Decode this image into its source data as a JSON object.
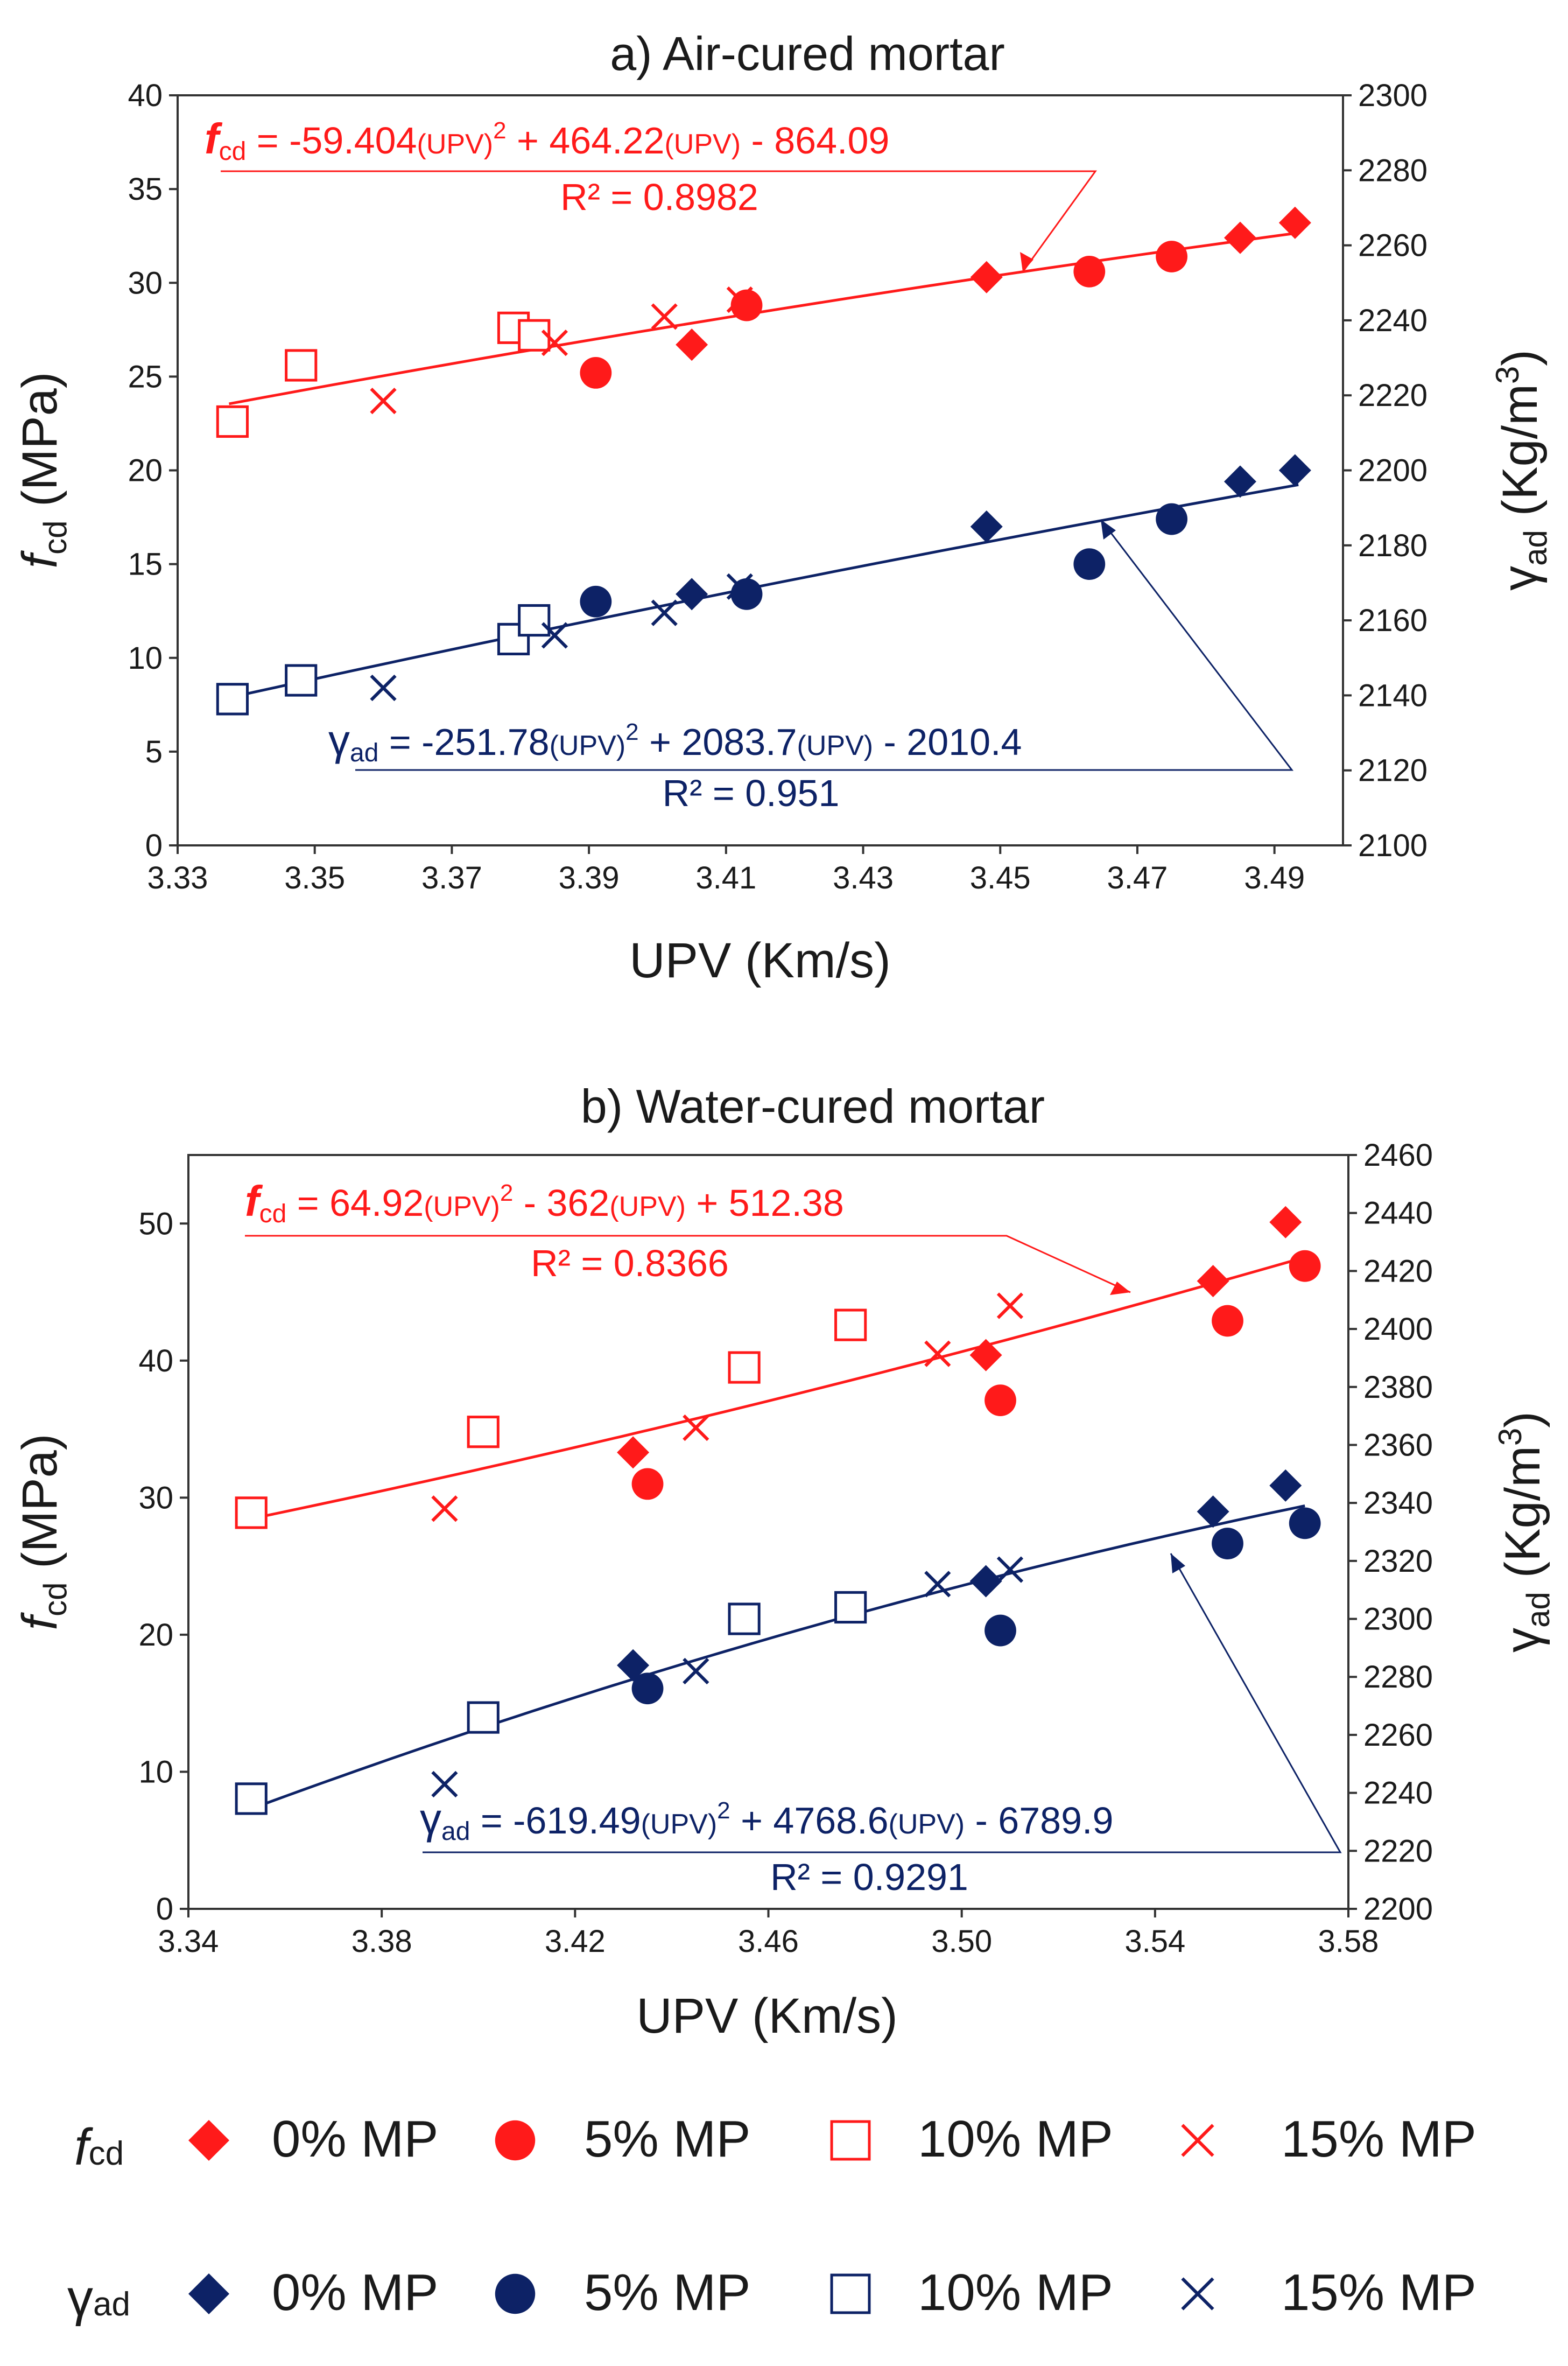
{
  "colors": {
    "red": "#ff1a1a",
    "navy": "#0d2266",
    "axis": "#333333",
    "text": "#1a1a1a"
  },
  "chart_data": [
    {
      "type": "scatter",
      "title": "a) Air-cured mortar",
      "xlabel": "UPV (Km/s)",
      "ylabel_main": "f",
      "ylabel_sub": "cd",
      "ylabel_unit": " (MPa)",
      "y2label_main": "γ",
      "y2label_sub": "ad",
      "y2label_unit": " (Kg/m",
      "y2label_sup": "3",
      "y2label_close": ")",
      "xlim": [
        3.33,
        3.5
      ],
      "ylim": [
        0,
        40
      ],
      "y2lim": [
        2100,
        2300
      ],
      "xticks": [
        "3.33",
        "3.35",
        "3.37",
        "3.39",
        "3.41",
        "3.43",
        "3.45",
        "3.47",
        "3.49"
      ],
      "yticks": [
        "0",
        "5",
        "10",
        "15",
        "20",
        "25",
        "30",
        "35",
        "40"
      ],
      "y2ticks": [
        "2100",
        "2120",
        "2140",
        "2160",
        "2180",
        "2200",
        "2220",
        "2240",
        "2260",
        "2280",
        "2300"
      ],
      "fit_fcd": {
        "a": -59.404,
        "b": 464.22,
        "c": -864.09,
        "x_range": [
          3.3375,
          3.4935
        ]
      },
      "fit_gad": {
        "a": -251.78,
        "b": 2083.7,
        "c": -2010.4,
        "x_range": [
          3.3375,
          3.4935
        ]
      },
      "eq_fcd": {
        "lead": "f",
        "sub": "cd",
        "p1": "  = -59.404",
        "u1": "(UPV)",
        "sq": "2",
        "p2": " + 464.22",
        "u2": "(UPV)",
        "p3": " - 864.09",
        "r2": "R² = 0.8982"
      },
      "eq_gad": {
        "lead": "γ",
        "sub": "ad",
        "p1": "  = -251.78",
        "u1": "(UPV)",
        "sq": "2",
        "p2": " + 2083.7",
        "u2": "(UPV)",
        "p3": " - 2010.4",
        "r2": "R² = 0.951"
      },
      "series": [
        {
          "name": "fcd 0% MP",
          "axis": "left",
          "marker": "diamond",
          "color": "red",
          "points": [
            [
              3.405,
              26.7
            ],
            [
              3.448,
              30.3
            ],
            [
              3.485,
              32.4
            ],
            [
              3.493,
              33.2
            ]
          ]
        },
        {
          "name": "fcd 5% MP",
          "axis": "left",
          "marker": "circle",
          "color": "red",
          "points": [
            [
              3.391,
              25.2
            ],
            [
              3.413,
              28.8
            ],
            [
              3.463,
              30.6
            ],
            [
              3.475,
              31.4
            ]
          ]
        },
        {
          "name": "fcd 10% MP",
          "axis": "left",
          "marker": "square",
          "color": "red",
          "points": [
            [
              3.338,
              22.6
            ],
            [
              3.348,
              25.6
            ],
            [
              3.379,
              27.6
            ],
            [
              3.382,
              27.2
            ]
          ]
        },
        {
          "name": "fcd 15% MP",
          "axis": "left",
          "marker": "x",
          "color": "red",
          "points": [
            [
              3.36,
              23.7
            ],
            [
              3.385,
              26.8
            ],
            [
              3.401,
              28.2
            ],
            [
              3.412,
              29.1
            ]
          ]
        },
        {
          "name": "γad 0% MP",
          "axis": "right",
          "marker": "diamond",
          "color": "navy",
          "points": [
            [
              3.405,
              2167
            ],
            [
              3.448,
              2185
            ],
            [
              3.485,
              2197
            ],
            [
              3.493,
              2200
            ]
          ]
        },
        {
          "name": "γad 5% MP",
          "axis": "right",
          "marker": "circle",
          "color": "navy",
          "points": [
            [
              3.391,
              2165
            ],
            [
              3.413,
              2167
            ],
            [
              3.463,
              2175
            ],
            [
              3.475,
              2187
            ]
          ]
        },
        {
          "name": "γad 10% MP",
          "axis": "right",
          "marker": "square",
          "color": "navy",
          "points": [
            [
              3.338,
              2139
            ],
            [
              3.348,
              2144
            ],
            [
              3.379,
              2155
            ],
            [
              3.382,
              2160
            ]
          ]
        },
        {
          "name": "γad 15% MP",
          "axis": "right",
          "marker": "x",
          "color": "navy",
          "points": [
            [
              3.36,
              2142
            ],
            [
              3.385,
              2156
            ],
            [
              3.401,
              2162
            ],
            [
              3.412,
              2169
            ]
          ]
        }
      ]
    },
    {
      "type": "scatter",
      "title": "b) Water-cured mortar",
      "xlabel": "UPV (Km/s)",
      "ylabel_main": "f",
      "ylabel_sub": "cd",
      "ylabel_unit": " (MPa)",
      "y2label_main": "γ",
      "y2label_sub": "ad",
      "y2label_unit": " (Kg/m",
      "y2label_sup": "3",
      "y2label_close": ")",
      "xlim": [
        3.34,
        3.58
      ],
      "ylim": [
        0,
        55
      ],
      "y2lim": [
        2200,
        2460
      ],
      "xticks": [
        "3.34",
        "3.38",
        "3.42",
        "3.46",
        "3.50",
        "3.54",
        "3.58"
      ],
      "yticks": [
        "0",
        "10",
        "20",
        "30",
        "40",
        "50"
      ],
      "y2ticks": [
        "2200",
        "2220",
        "2240",
        "2260",
        "2280",
        "2300",
        "2320",
        "2340",
        "2360",
        "2380",
        "2400",
        "2420",
        "2440",
        "2460"
      ],
      "fit_fcd": {
        "a": 64.92,
        "b": -362,
        "c": 512.38,
        "x_range": [
          3.353,
          3.571
        ]
      },
      "fit_gad": {
        "a": -619.49,
        "b": 4768.6,
        "c": -6789.9,
        "x_range": [
          3.353,
          3.571
        ]
      },
      "eq_fcd": {
        "lead": "f",
        "sub": "cd",
        "p1": " = 64.92",
        "u1": "(UPV)",
        "sq": "2",
        "p2": " - 362",
        "u2": "(UPV)",
        "p3": " + 512.38",
        "r2": "R² = 0.8366"
      },
      "eq_gad": {
        "lead": "γ",
        "sub": "ad",
        "p1": " = -619.49",
        "u1": "(UPV)",
        "sq": "2",
        "p2": " + 4768.6",
        "u2": "(UPV)",
        "p3": " - 6789.9",
        "r2": "R² = 0.9291"
      },
      "series": [
        {
          "name": "fcd 0% MP",
          "axis": "left",
          "marker": "diamond",
          "color": "red",
          "points": [
            [
              3.432,
              33.3
            ],
            [
              3.505,
              40.4
            ],
            [
              3.552,
              45.8
            ],
            [
              3.567,
              50.1
            ]
          ]
        },
        {
          "name": "fcd 5% MP",
          "axis": "left",
          "marker": "circle",
          "color": "red",
          "points": [
            [
              3.435,
              31.0
            ],
            [
              3.508,
              37.1
            ],
            [
              3.555,
              42.9
            ],
            [
              3.571,
              46.9
            ]
          ]
        },
        {
          "name": "fcd 10% MP",
          "axis": "left",
          "marker": "square",
          "color": "red",
          "points": [
            [
              3.353,
              28.9
            ],
            [
              3.401,
              34.8
            ],
            [
              3.455,
              39.5
            ],
            [
              3.477,
              42.6
            ]
          ]
        },
        {
          "name": "fcd 15% MP",
          "axis": "left",
          "marker": "x",
          "color": "red",
          "points": [
            [
              3.393,
              29.2
            ],
            [
              3.445,
              35.1
            ],
            [
              3.495,
              40.5
            ],
            [
              3.51,
              44.0
            ]
          ]
        },
        {
          "name": "γad 0% MP",
          "axis": "right",
          "marker": "diamond",
          "color": "navy",
          "points": [
            [
              3.432,
              2284
            ],
            [
              3.505,
              2313
            ],
            [
              3.552,
              2337
            ],
            [
              3.567,
              2346
            ]
          ]
        },
        {
          "name": "γad 5% MP",
          "axis": "right",
          "marker": "circle",
          "color": "navy",
          "points": [
            [
              3.435,
              2276
            ],
            [
              3.508,
              2296
            ],
            [
              3.555,
              2326
            ],
            [
              3.571,
              2333
            ]
          ]
        },
        {
          "name": "γad 10% MP",
          "axis": "right",
          "marker": "square",
          "color": "navy",
          "points": [
            [
              3.353,
              2238
            ],
            [
              3.401,
              2266
            ],
            [
              3.455,
              2300
            ],
            [
              3.477,
              2304
            ]
          ]
        },
        {
          "name": "γad 15% MP",
          "axis": "right",
          "marker": "x",
          "color": "navy",
          "points": [
            [
              3.393,
              2243
            ],
            [
              3.445,
              2282
            ],
            [
              3.495,
              2312
            ],
            [
              3.51,
              2317
            ]
          ]
        }
      ]
    }
  ],
  "legend": {
    "fcd_main": "f",
    "fcd_sub": "cd",
    "gad_main": "γ",
    "gad_sub": "ad",
    "items": [
      "0% MP",
      "5% MP",
      "10% MP",
      "15% MP"
    ],
    "markers": [
      "diamond",
      "circle",
      "square",
      "x"
    ]
  }
}
